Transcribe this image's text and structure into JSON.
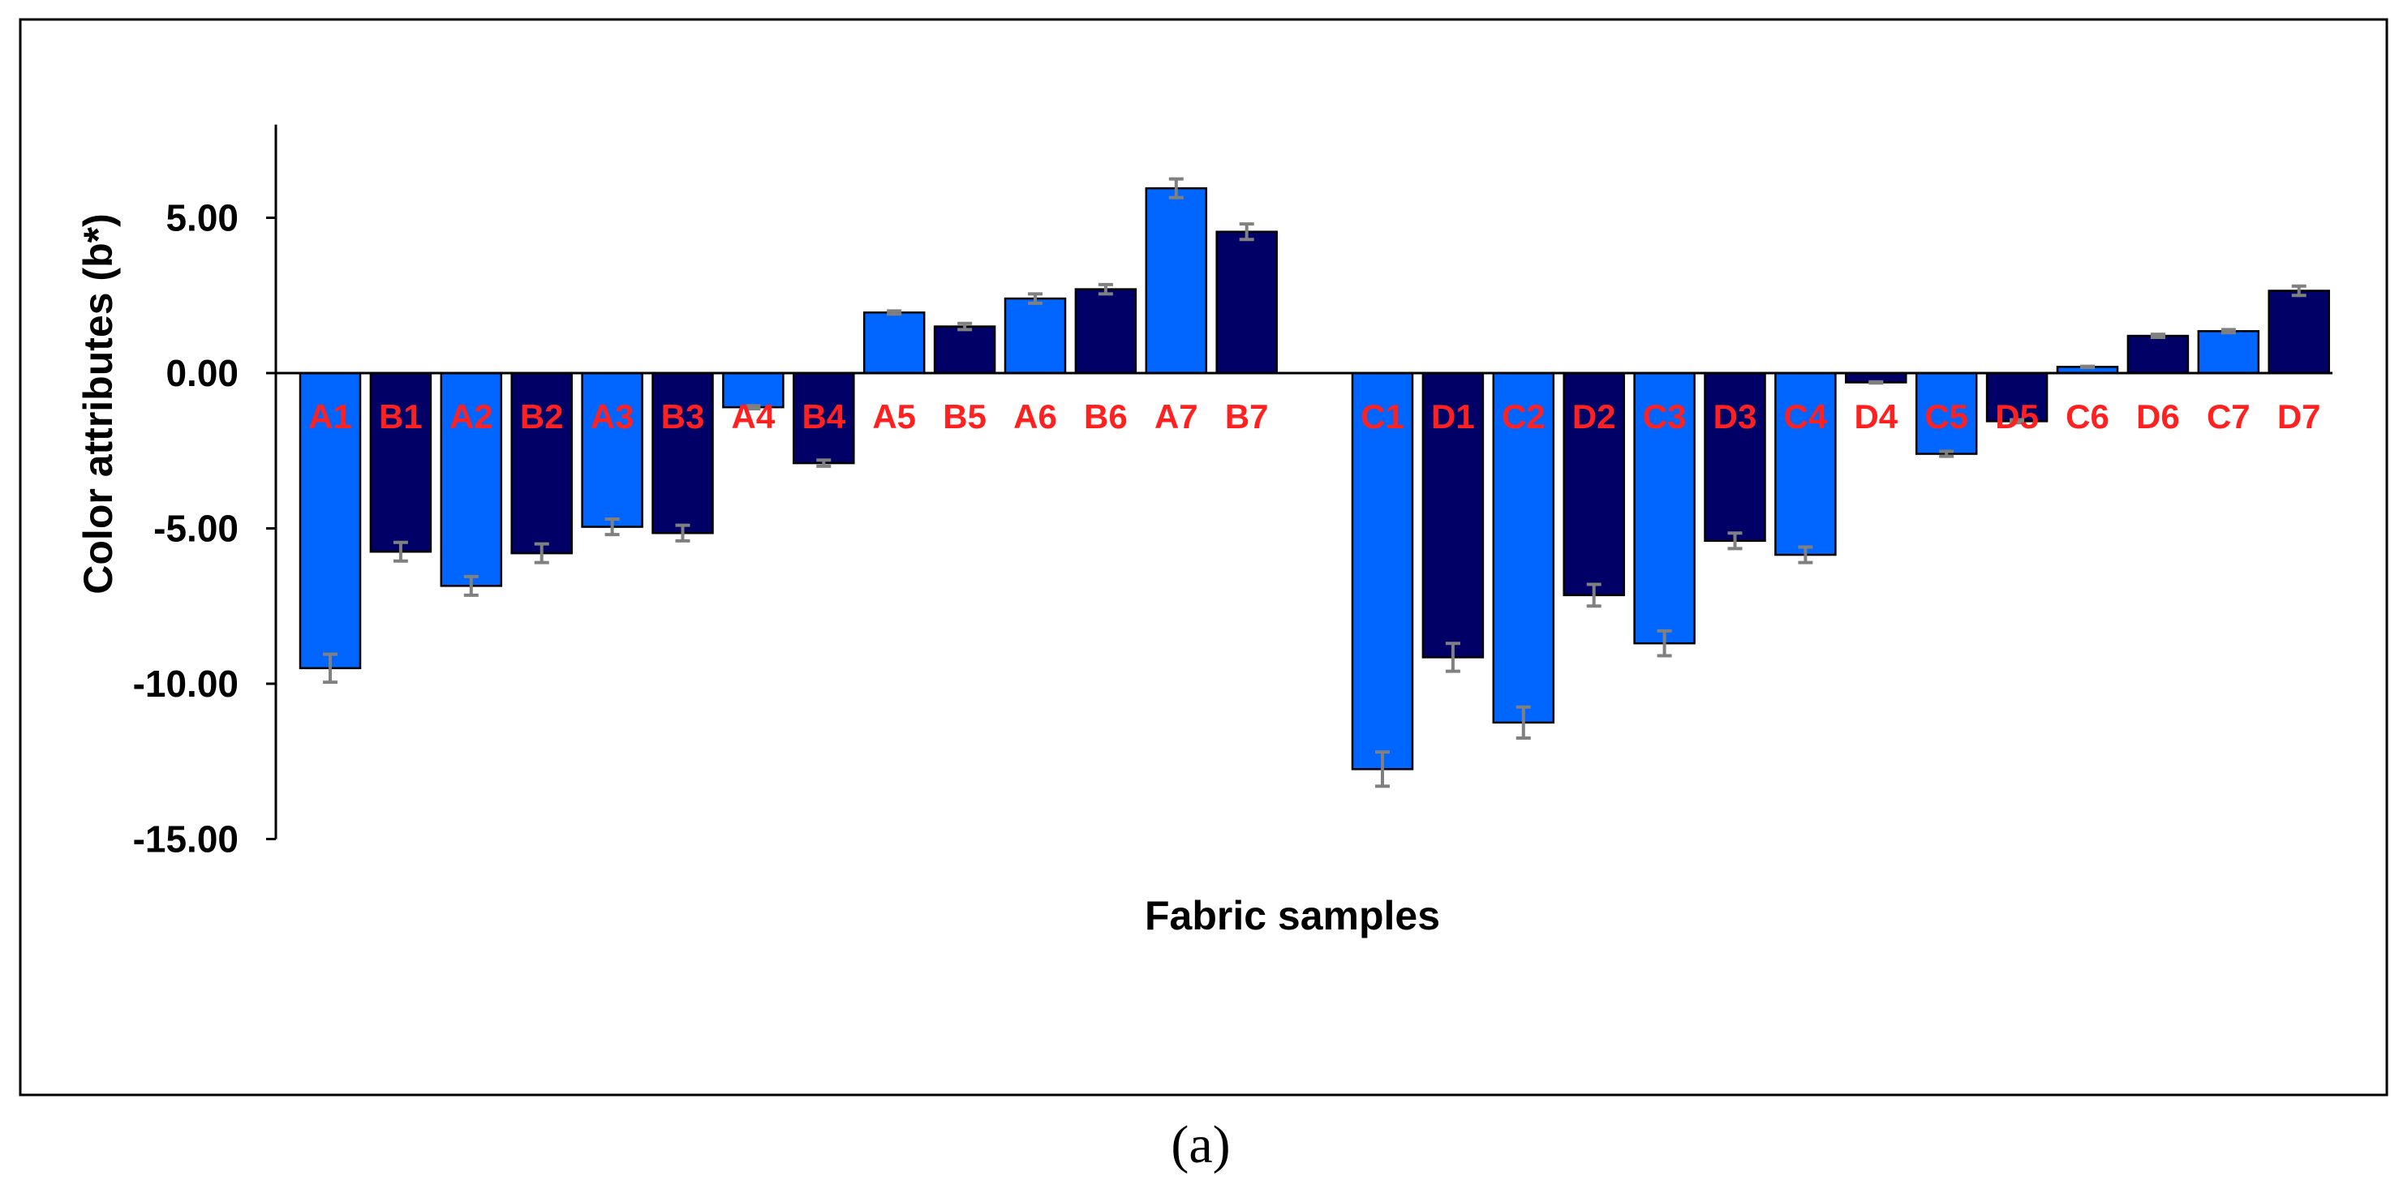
{
  "caption": "(a)",
  "chart_data": {
    "type": "bar",
    "title": "",
    "xlabel": "Fabric samples",
    "ylabel": "Color attributes (b*)",
    "ylim": [
      -15,
      8
    ],
    "yticks": [
      5,
      0,
      -5,
      -10,
      -15
    ],
    "ytick_labels": [
      "5.00",
      "0.00",
      "-5.00",
      "-10.00",
      "-15.00"
    ],
    "grid": false,
    "legend": "none",
    "colors": {
      "light": "#0066ff",
      "dark": "#000066",
      "label": "#ff2020",
      "error": "#808080"
    },
    "groups": [
      {
        "categories": [
          "A1",
          "B1",
          "A2",
          "B2",
          "A3",
          "B3",
          "A4",
          "B4",
          "A5",
          "B5",
          "A6",
          "B6",
          "A7",
          "B7"
        ],
        "values": [
          -9.5,
          -5.75,
          -6.85,
          -5.8,
          -4.95,
          -5.15,
          -1.1,
          -2.9,
          1.95,
          1.5,
          2.4,
          2.7,
          5.95,
          4.55
        ],
        "errors": [
          0.45,
          0.3,
          0.3,
          0.3,
          0.25,
          0.25,
          0.05,
          0.1,
          0.05,
          0.1,
          0.15,
          0.15,
          0.3,
          0.25
        ],
        "shades": [
          "light",
          "dark",
          "light",
          "dark",
          "light",
          "dark",
          "light",
          "dark",
          "light",
          "dark",
          "light",
          "dark",
          "light",
          "dark"
        ]
      },
      {
        "categories": [
          "C1",
          "D1",
          "C2",
          "D2",
          "C3",
          "D3",
          "C4",
          "D4",
          "C5",
          "D5",
          "C6",
          "D6",
          "C7",
          "D7"
        ],
        "values": [
          -12.75,
          -9.15,
          -11.25,
          -7.15,
          -8.7,
          -5.4,
          -5.85,
          -0.3,
          -2.6,
          -1.55,
          0.2,
          1.2,
          1.35,
          2.65
        ],
        "errors": [
          0.55,
          0.45,
          0.5,
          0.35,
          0.4,
          0.25,
          0.25,
          0.02,
          0.08,
          0.05,
          0.02,
          0.05,
          0.05,
          0.15
        ],
        "shades": [
          "light",
          "dark",
          "light",
          "dark",
          "light",
          "dark",
          "light",
          "dark",
          "light",
          "dark",
          "light",
          "dark",
          "light",
          "dark"
        ]
      }
    ]
  }
}
